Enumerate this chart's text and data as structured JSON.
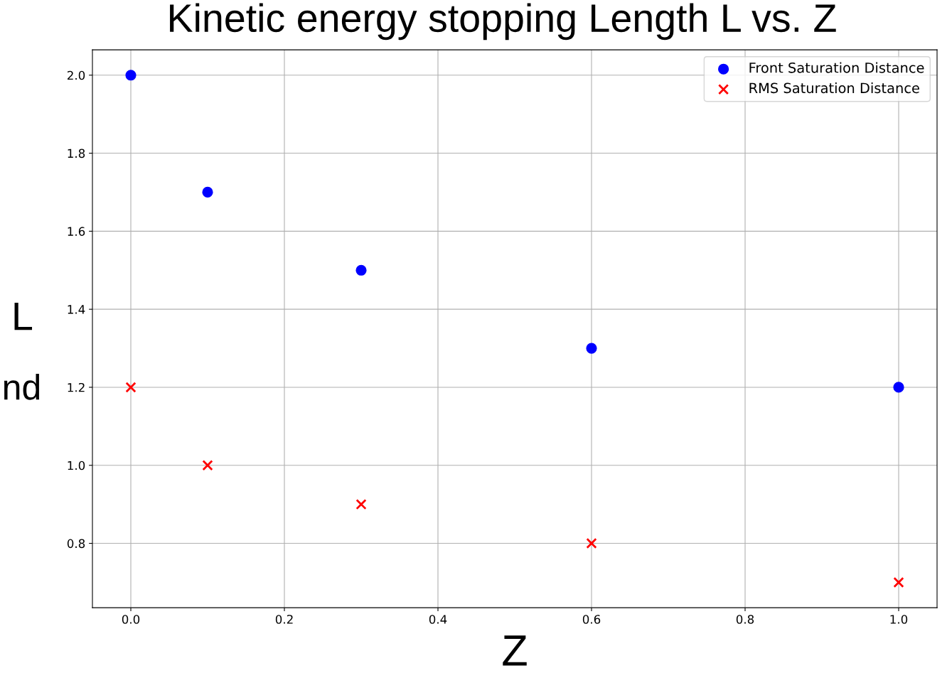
{
  "chart_data": {
    "type": "scatter",
    "title": "Kinetic energy stopping Length L vs. Z",
    "xlabel": "Z",
    "annotations": [
      "L",
      "nd"
    ],
    "xlim": [
      -0.05,
      1.05
    ],
    "xticks": [
      {
        "value": 0,
        "label": "0.0"
      },
      0.2,
      0.4,
      0.6,
      0.8,
      {
        "value": 1,
        "label": "1.0"
      }
    ],
    "ylim": [
      0.635,
      2.065
    ],
    "yticks": [
      0.8,
      {
        "value": 1,
        "label": "1.0"
      },
      1.2,
      1.4,
      1.6,
      1.8,
      {
        "value": 2,
        "label": "2.0"
      }
    ],
    "grid": true,
    "legend": "top right",
    "series": [
      {
        "name": "Front Saturation Distance",
        "color": "#0000ff",
        "marker": "circle",
        "x": [
          0,
          0.1,
          0.3,
          0.6,
          1.0
        ],
        "values": [
          2.0,
          1.7,
          1.5,
          1.3,
          1.2
        ]
      },
      {
        "name": "RMS Saturation Distance",
        "color": "#ff0000",
        "marker": "cross",
        "x": [
          0,
          0.1,
          0.3,
          0.6,
          1.0
        ],
        "values": [
          1.2,
          1.0,
          0.9,
          0.8,
          0.7
        ]
      }
    ]
  }
}
